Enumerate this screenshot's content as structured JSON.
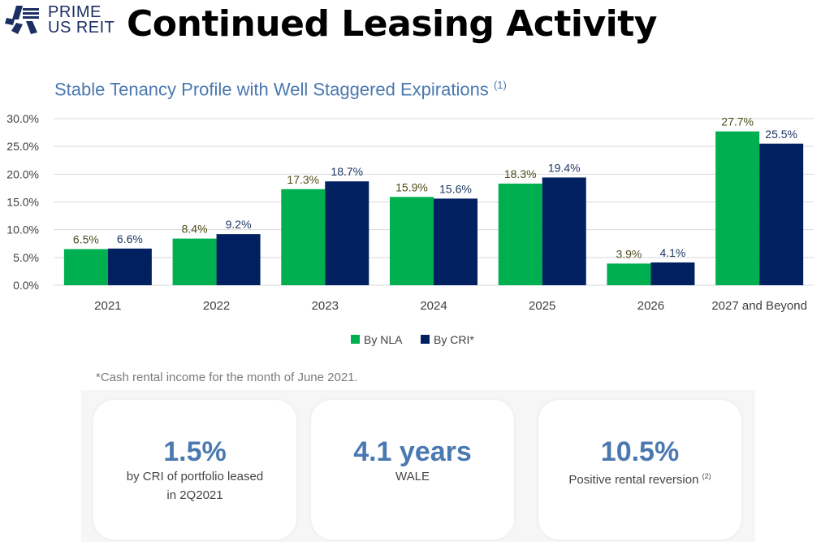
{
  "logo": {
    "line1": "PRIME",
    "line2": "US REIT"
  },
  "title": "Continued Leasing Activity",
  "subtitle": "Stable Tenancy Profile with Well Staggered Expirations",
  "subtitle_note": "(1)",
  "chart_data": {
    "type": "bar",
    "title": "Stable Tenancy Profile with Well Staggered Expirations",
    "categories": [
      "2021",
      "2022",
      "2023",
      "2024",
      "2025",
      "2026",
      "2027 and Beyond"
    ],
    "series": [
      {
        "name": "By NLA",
        "color": "#00b050",
        "values": [
          6.5,
          8.4,
          17.3,
          15.9,
          18.3,
          3.9,
          27.7
        ],
        "labels": [
          "6.5%",
          "8.4%",
          "17.3%",
          "15.9%",
          "18.3%",
          "3.9%",
          "27.7%"
        ]
      },
      {
        "name": "By CRI*",
        "color": "#002060",
        "values": [
          6.6,
          9.2,
          18.7,
          15.6,
          19.4,
          4.1,
          25.5
        ],
        "labels": [
          "6.6%",
          "9.2%",
          "18.7%",
          "15.6%",
          "19.4%",
          "4.1%",
          "25.5%"
        ]
      }
    ],
    "ylim": [
      0,
      30
    ],
    "yticks": [
      "0.0%",
      "5.0%",
      "10.0%",
      "15.0%",
      "20.0%",
      "25.0%",
      "30.0%"
    ],
    "grid": true,
    "legend": "bottom"
  },
  "footnote": "*Cash rental income for the month of June 2021.",
  "cards": [
    {
      "value": "1.5%",
      "line1": "by CRI of portfolio leased",
      "line2": "in 2Q2021",
      "note": ""
    },
    {
      "value": "4.1 years",
      "line1": "WALE",
      "line2": "",
      "note": ""
    },
    {
      "value": "10.5%",
      "line1": "Positive rental reversion",
      "line2": "",
      "note": "(2)"
    }
  ]
}
